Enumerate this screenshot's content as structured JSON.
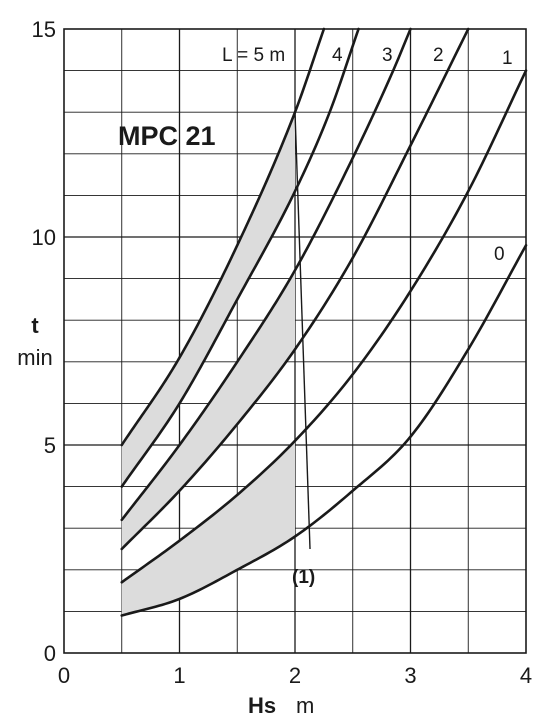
{
  "chart_data": {
    "type": "line",
    "title": "MPC 21",
    "xlabel": "Hs",
    "xunit": "m",
    "ylabel": "t",
    "yunit": "min",
    "xlim": [
      0,
      4
    ],
    "ylim": [
      0,
      15
    ],
    "x_ticks": [
      "0",
      "1",
      "2",
      "3",
      "4"
    ],
    "y_ticks": [
      "0",
      "5",
      "10",
      "15"
    ],
    "grid": true,
    "series": [
      {
        "name": "0",
        "points": [
          [
            0.5,
            0.9
          ],
          [
            1.0,
            1.3
          ],
          [
            1.5,
            2.0
          ],
          [
            2.0,
            2.8
          ],
          [
            2.5,
            3.9
          ],
          [
            3.0,
            5.2
          ],
          [
            3.5,
            7.3
          ],
          [
            4.0,
            9.8
          ]
        ]
      },
      {
        "name": "1",
        "points": [
          [
            0.5,
            1.7
          ],
          [
            1.0,
            2.7
          ],
          [
            1.5,
            3.8
          ],
          [
            2.0,
            5.1
          ],
          [
            2.5,
            6.7
          ],
          [
            3.0,
            8.7
          ],
          [
            3.5,
            11.1
          ],
          [
            4.0,
            14.0
          ]
        ]
      },
      {
        "name": "2",
        "points": [
          [
            0.5,
            2.5
          ],
          [
            1.0,
            3.9
          ],
          [
            1.5,
            5.5
          ],
          [
            2.0,
            7.3
          ],
          [
            2.5,
            9.5
          ],
          [
            3.0,
            12.2
          ],
          [
            3.5,
            15.0
          ]
        ]
      },
      {
        "name": "3",
        "points": [
          [
            0.5,
            3.2
          ],
          [
            1.0,
            5.0
          ],
          [
            1.5,
            7.0
          ],
          [
            2.0,
            9.2
          ],
          [
            2.5,
            11.9
          ],
          [
            2.85,
            14.0
          ],
          [
            3.0,
            15.0
          ]
        ]
      },
      {
        "name": "4",
        "points": [
          [
            0.5,
            4.0
          ],
          [
            1.0,
            6.0
          ],
          [
            1.5,
            8.5
          ],
          [
            2.0,
            11.1
          ],
          [
            2.3,
            13.0
          ],
          [
            2.55,
            15.0
          ]
        ]
      },
      {
        "name": "L = 5 m",
        "points": [
          [
            0.5,
            5.0
          ],
          [
            1.0,
            7.1
          ],
          [
            1.5,
            9.8
          ],
          [
            2.0,
            13.0
          ],
          [
            2.25,
            15.0
          ]
        ]
      }
    ],
    "shaded_regions": [
      {
        "upper": "L = 5 m",
        "lower": "4",
        "x_from": 0.5,
        "x_to": 2.0
      },
      {
        "upper": "3",
        "lower": "2",
        "x_from": 0.5,
        "x_to": 2.0
      },
      {
        "upper": "1",
        "lower": "0",
        "x_from": 0.5,
        "x_to": 2.0
      }
    ],
    "annotations": [
      {
        "text": "(1)",
        "line_from": [
          2.0,
          13.0
        ],
        "line_to": [
          2.13,
          2.5
        ]
      }
    ],
    "colors": {
      "curve": "#1a1a1a",
      "grid": "#1a1a1a",
      "shade": "#dcdcdc"
    }
  }
}
